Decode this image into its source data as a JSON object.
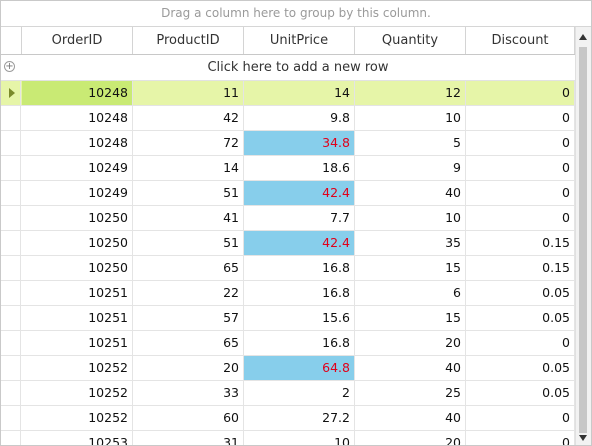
{
  "group_panel": {
    "hint": "Drag a column here to group by this column."
  },
  "columns": [
    "OrderID",
    "ProductID",
    "UnitPrice",
    "Quantity",
    "Discount"
  ],
  "new_row": {
    "label": "Click here to add a new row"
  },
  "rows": [
    [
      "10248",
      "11",
      "14",
      "12",
      "0"
    ],
    [
      "10248",
      "42",
      "9.8",
      "10",
      "0"
    ],
    [
      "10248",
      "72",
      "34.8",
      "5",
      "0"
    ],
    [
      "10249",
      "14",
      "18.6",
      "9",
      "0"
    ],
    [
      "10249",
      "51",
      "42.4",
      "40",
      "0"
    ],
    [
      "10250",
      "41",
      "7.7",
      "10",
      "0"
    ],
    [
      "10250",
      "51",
      "42.4",
      "35",
      "0.15"
    ],
    [
      "10250",
      "65",
      "16.8",
      "15",
      "0.15"
    ],
    [
      "10251",
      "22",
      "16.8",
      "6",
      "0.05"
    ],
    [
      "10251",
      "57",
      "15.6",
      "15",
      "0.05"
    ],
    [
      "10251",
      "65",
      "16.8",
      "20",
      "0"
    ],
    [
      "10252",
      "20",
      "64.8",
      "40",
      "0.05"
    ],
    [
      "10252",
      "33",
      "2",
      "25",
      "0.05"
    ],
    [
      "10252",
      "60",
      "27.2",
      "40",
      "0"
    ],
    [
      "10253",
      "31",
      "10",
      "20",
      "0"
    ]
  ],
  "current_row": 0,
  "highlighted_unitprice_rows": [
    2,
    4,
    6,
    11
  ],
  "colors": {
    "current_row_bg": "#e6f5a8",
    "current_cell_bg": "#c9ea74",
    "highlight_bg": "#87ceeb",
    "highlight_text": "#e0001a"
  },
  "icons": {
    "add_row": "plus-circle-icon",
    "current_row": "row-indicator-arrow-icon",
    "scroll_up": "chevron-up-icon",
    "scroll_down": "chevron-down-icon"
  }
}
